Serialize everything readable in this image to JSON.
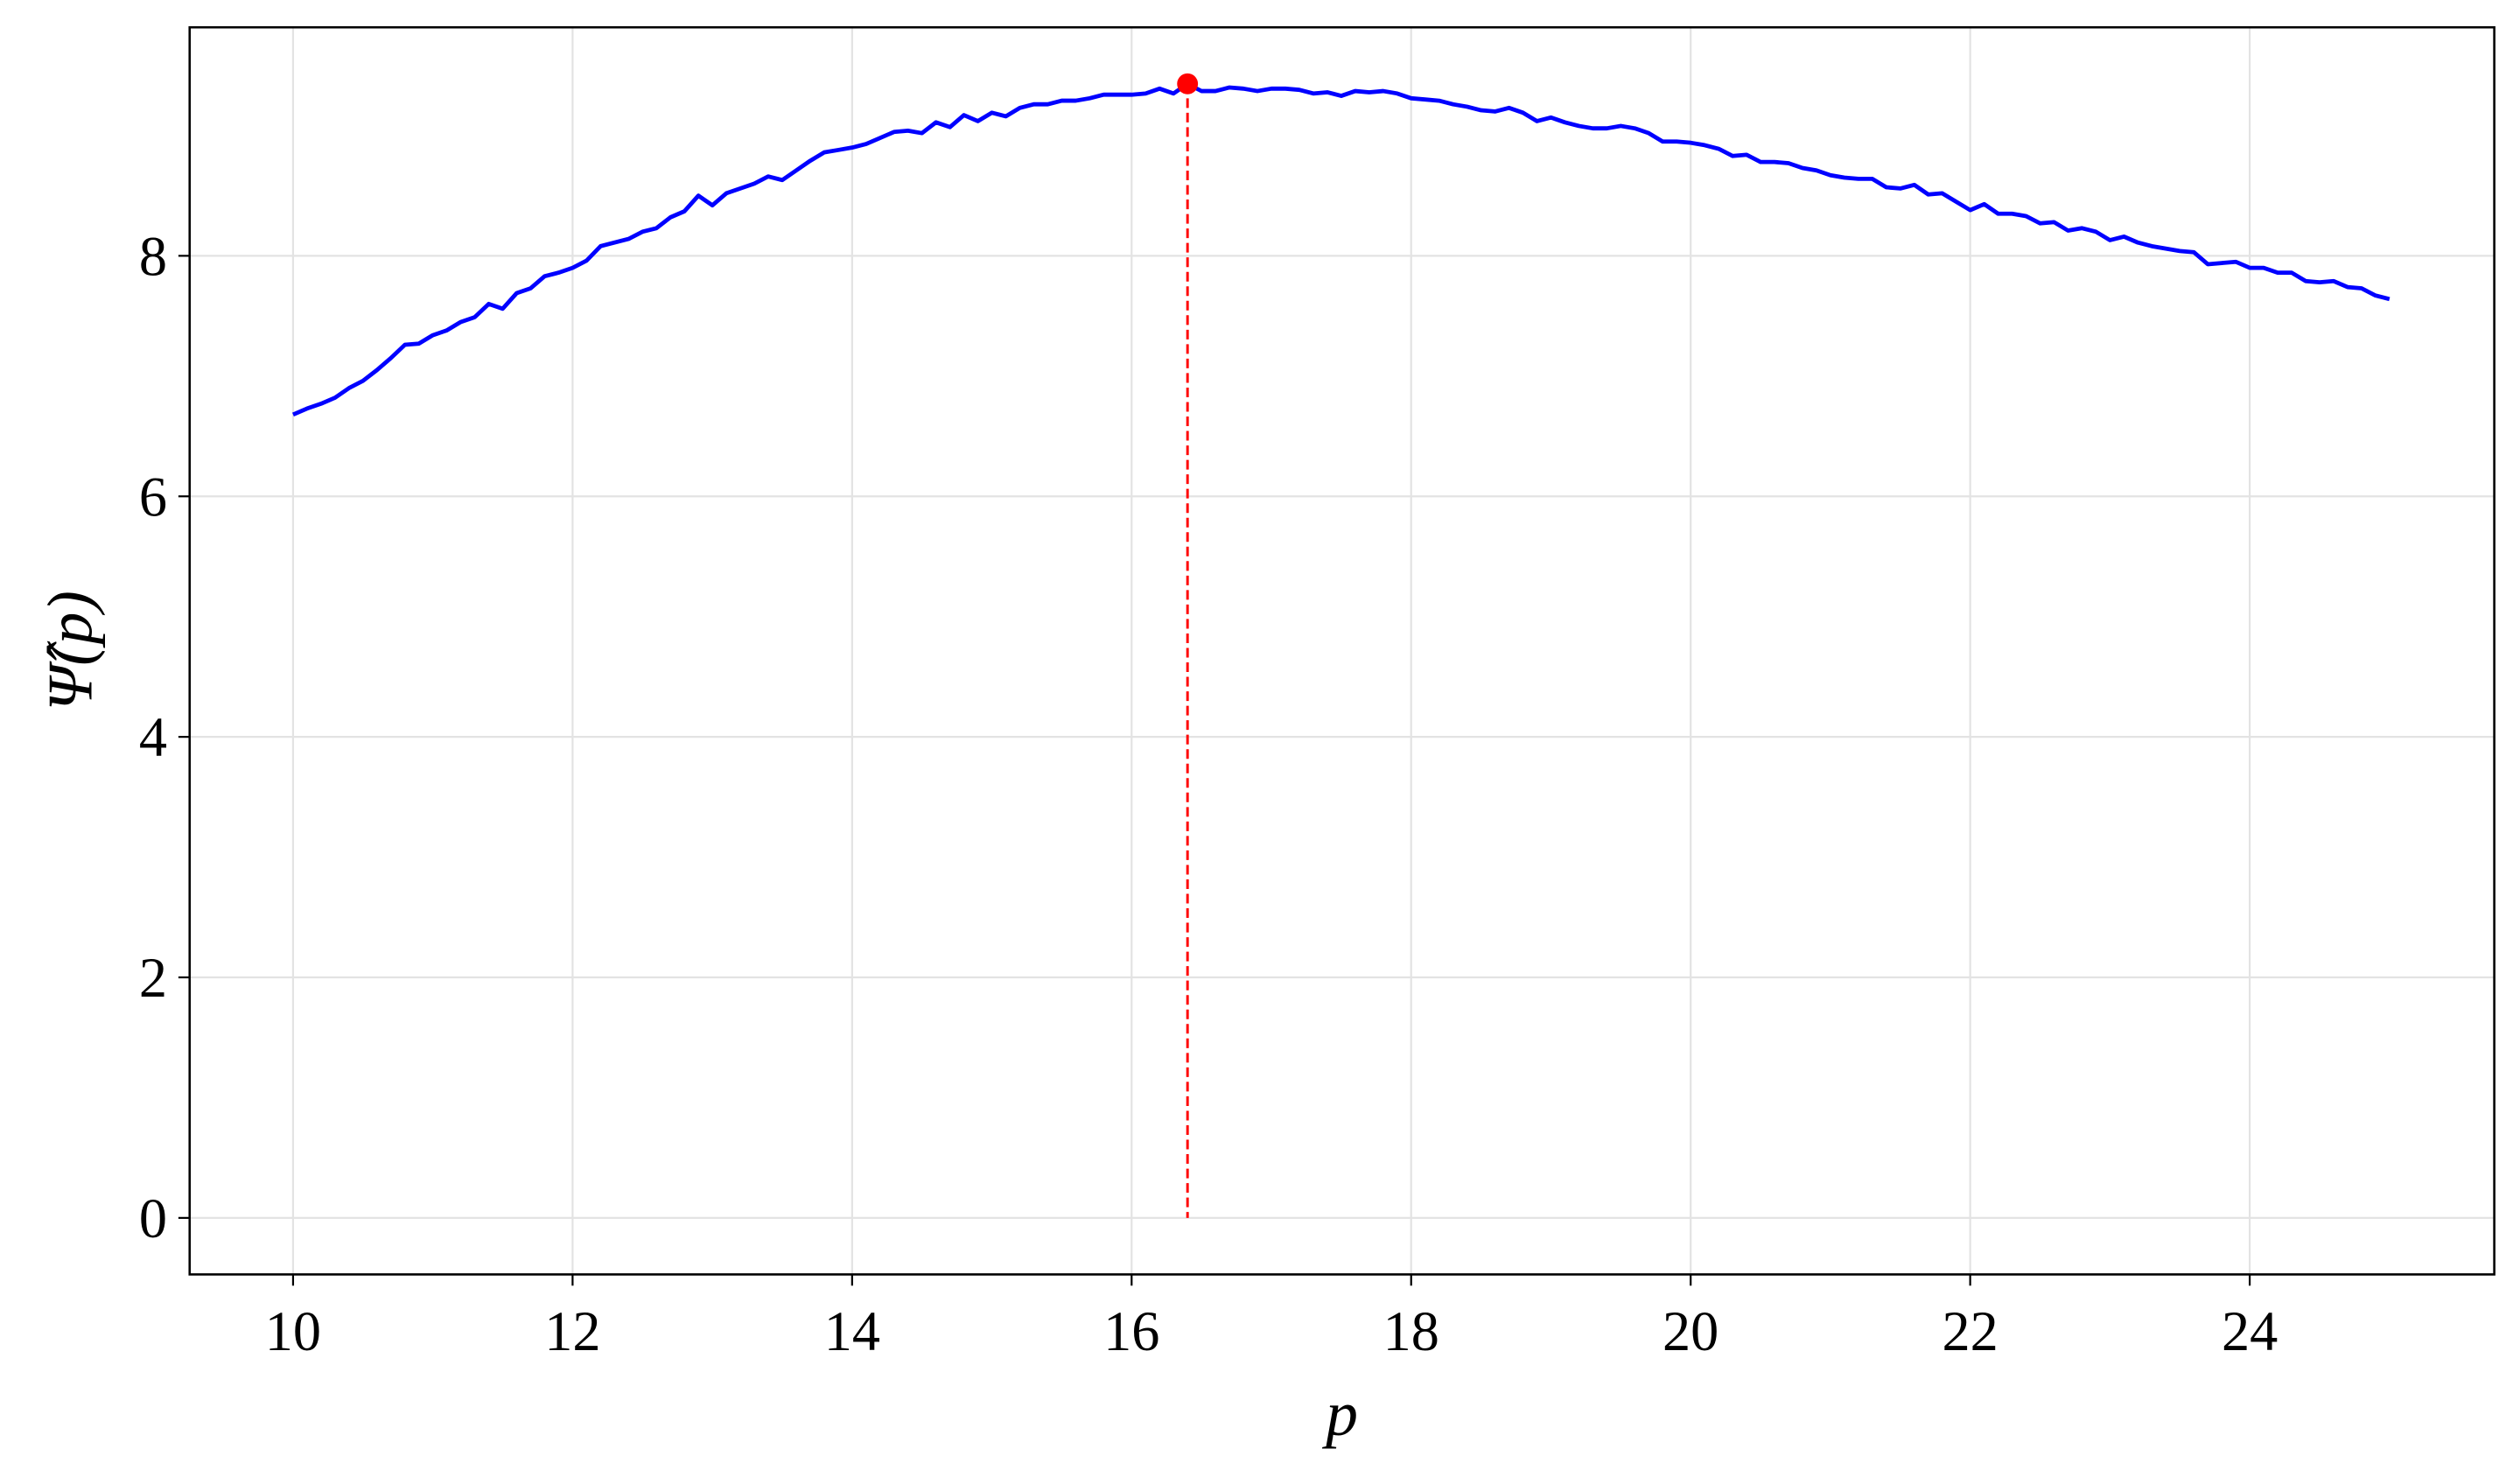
{
  "chart_data": {
    "type": "line",
    "x_label": "p",
    "y_label": "Ψ̂(p)",
    "x": [
      10.0,
      10.1,
      10.2,
      10.3,
      10.4,
      10.5,
      10.6,
      10.7,
      10.8,
      10.9,
      11.0,
      11.1,
      11.2,
      11.3,
      11.4,
      11.5,
      11.6,
      11.7,
      11.8,
      11.9,
      12.0,
      12.1,
      12.2,
      12.3,
      12.4,
      12.5,
      12.6,
      12.7,
      12.8,
      12.9,
      13.0,
      13.1,
      13.2,
      13.3,
      13.4,
      13.5,
      13.6,
      13.7,
      13.8,
      13.9,
      14.0,
      14.1,
      14.2,
      14.3,
      14.4,
      14.5,
      14.6,
      14.7,
      14.8,
      14.9,
      15.0,
      15.1,
      15.2,
      15.3,
      15.4,
      15.5,
      15.6,
      15.7,
      15.8,
      15.9,
      16.0,
      16.1,
      16.2,
      16.3,
      16.4,
      16.5,
      16.6,
      16.7,
      16.8,
      16.9,
      17.0,
      17.1,
      17.2,
      17.3,
      17.4,
      17.5,
      17.6,
      17.7,
      17.8,
      17.9,
      18.0,
      18.1,
      18.2,
      18.3,
      18.4,
      18.5,
      18.6,
      18.7,
      18.8,
      18.9,
      19.0,
      19.1,
      19.2,
      19.3,
      19.4,
      19.5,
      19.6,
      19.7,
      19.8,
      19.9,
      20.0,
      20.1,
      20.2,
      20.3,
      20.4,
      20.5,
      20.6,
      20.7,
      20.8,
      20.9,
      21.0,
      21.1,
      21.2,
      21.3,
      21.4,
      21.5,
      21.6,
      21.7,
      21.8,
      21.9,
      22.0,
      22.1,
      22.2,
      22.3,
      22.4,
      22.5,
      22.6,
      22.7,
      22.8,
      22.9,
      23.0,
      23.1,
      23.2,
      23.3,
      23.4,
      23.5,
      23.6,
      23.7,
      23.8,
      23.9,
      24.0,
      24.1,
      24.2,
      24.3,
      24.4,
      24.5,
      24.6,
      24.7,
      24.8,
      24.9,
      25.0
    ],
    "values": [
      6.68,
      6.73,
      6.77,
      6.82,
      6.9,
      6.96,
      7.05,
      7.15,
      7.26,
      7.27,
      7.34,
      7.38,
      7.45,
      7.49,
      7.6,
      7.56,
      7.69,
      7.73,
      7.83,
      7.86,
      7.9,
      7.96,
      8.08,
      8.11,
      8.14,
      8.2,
      8.23,
      8.32,
      8.37,
      8.5,
      8.42,
      8.52,
      8.56,
      8.6,
      8.66,
      8.63,
      8.71,
      8.79,
      8.86,
      8.88,
      8.9,
      8.93,
      8.98,
      9.03,
      9.04,
      9.02,
      9.11,
      9.07,
      9.17,
      9.12,
      9.19,
      9.16,
      9.23,
      9.26,
      9.26,
      9.29,
      9.29,
      9.31,
      9.34,
      9.34,
      9.34,
      9.35,
      9.39,
      9.35,
      9.43,
      9.37,
      9.37,
      9.4,
      9.39,
      9.37,
      9.39,
      9.39,
      9.38,
      9.35,
      9.36,
      9.33,
      9.37,
      9.36,
      9.37,
      9.35,
      9.31,
      9.3,
      9.29,
      9.26,
      9.24,
      9.21,
      9.2,
      9.23,
      9.19,
      9.12,
      9.15,
      9.11,
      9.08,
      9.06,
      9.06,
      9.08,
      9.06,
      9.02,
      8.95,
      8.95,
      8.94,
      8.92,
      8.89,
      8.83,
      8.84,
      8.78,
      8.78,
      8.77,
      8.73,
      8.71,
      8.67,
      8.65,
      8.64,
      8.64,
      8.57,
      8.56,
      8.59,
      8.51,
      8.52,
      8.45,
      8.38,
      8.43,
      8.35,
      8.35,
      8.33,
      8.27,
      8.28,
      8.21,
      8.23,
      8.2,
      8.13,
      8.16,
      8.11,
      8.08,
      8.06,
      8.04,
      8.03,
      7.93,
      7.94,
      7.95,
      7.9,
      7.9,
      7.86,
      7.86,
      7.79,
      7.78,
      7.79,
      7.74,
      7.73,
      7.67,
      7.64
    ],
    "color": "#0000ff",
    "peak": {
      "x": 16.4,
      "y": 9.43,
      "color": "#ff0000"
    },
    "xlim": [
      9.26,
      25.75
    ],
    "ylim": [
      -0.47,
      9.9
    ],
    "xticks": [
      10,
      12,
      14,
      16,
      18,
      20,
      22,
      24
    ],
    "yticks": [
      0,
      2,
      4,
      6,
      8
    ],
    "grid": true
  }
}
